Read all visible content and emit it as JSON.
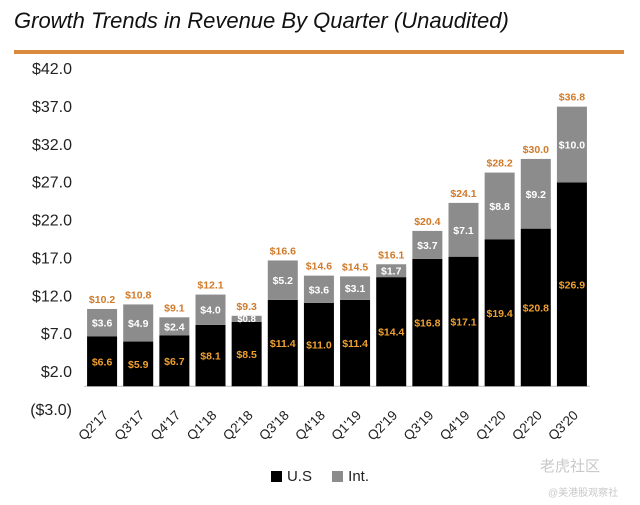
{
  "title": "Growth Trends in Revenue By Quarter (Unaudited)",
  "colors": {
    "rule": "#d98a3c",
    "us": "#000000",
    "int": "#8c8c8c",
    "total_label": "#d07a2a",
    "us_label": "#f0a030"
  },
  "legend": {
    "us": "U.S",
    "int": "Int."
  },
  "watermark": {
    "line1": "老虎社区",
    "line2": "@美港股观察社"
  },
  "chart_data": {
    "type": "bar",
    "stacked": true,
    "categories": [
      "Q2'17",
      "Q3'17",
      "Q4'17",
      "Q1'18",
      "Q2'18",
      "Q3'18",
      "Q4'18",
      "Q1'19",
      "Q2'19",
      "Q3'19",
      "Q4'19",
      "Q1'20",
      "Q2'20",
      "Q3'20"
    ],
    "series": [
      {
        "name": "U.S",
        "values": [
          6.6,
          5.9,
          6.7,
          8.1,
          8.5,
          11.4,
          11.0,
          11.4,
          14.4,
          16.8,
          17.1,
          19.4,
          20.8,
          26.9
        ],
        "labels": [
          "$6.6",
          "$5.9",
          "$6.7",
          "$8.1",
          "$8.5",
          "$11.4",
          "$11.0",
          "$11.4",
          "$14.4",
          "$16.8",
          "$17.1",
          "$19.4",
          "$20.8",
          "$26.9"
        ]
      },
      {
        "name": "Int.",
        "values": [
          3.6,
          4.9,
          2.4,
          4.0,
          0.8,
          5.2,
          3.6,
          3.1,
          1.7,
          3.7,
          7.1,
          8.8,
          9.2,
          10.0
        ],
        "labels": [
          "$3.6",
          "$4.9",
          "$2.4",
          "$4.0",
          "$0.8",
          "$5.2",
          "$3.6",
          "$3.1",
          "$1.7",
          "$3.7",
          "$7.1",
          "$8.8",
          "$9.2",
          "$10.0"
        ]
      }
    ],
    "totals": [
      10.2,
      10.8,
      9.1,
      12.1,
      9.3,
      16.6,
      14.6,
      14.5,
      16.1,
      20.4,
      24.1,
      28.2,
      30.0,
      36.8
    ],
    "total_labels": [
      "$10.2",
      "$10.8",
      "$9.1",
      "$12.1",
      "$9.3",
      "$16.6",
      "$14.6",
      "$14.5",
      "$16.1",
      "$20.4",
      "$24.1",
      "$28.2",
      "$30.0",
      "$36.8"
    ],
    "yticks": [
      42.0,
      37.0,
      32.0,
      27.0,
      22.0,
      17.0,
      12.0,
      7.0,
      2.0,
      -3.0
    ],
    "ytick_labels": [
      "$42.0",
      "$37.0",
      "$32.0",
      "$27.0",
      "$22.0",
      "$17.0",
      "$12.0",
      "$7.0",
      "$2.0",
      "($3.0)"
    ],
    "ylim": [
      -3.0,
      42.0
    ],
    "grid": false,
    "legend_position": "bottom"
  }
}
